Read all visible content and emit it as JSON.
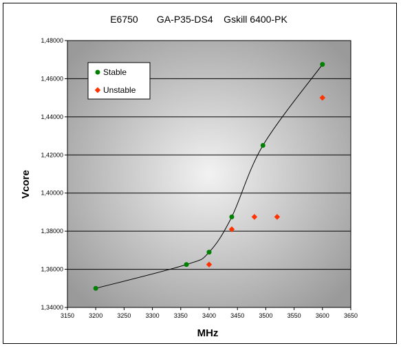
{
  "chart_data": {
    "type": "scatter",
    "title": "E6750       GA-P35-DS4    Gskill 6400-PK",
    "xlabel": "MHz",
    "ylabel": "Vcore",
    "xlim": [
      3150,
      3650
    ],
    "ylim": [
      1.34,
      1.48
    ],
    "x_ticks": [
      3150,
      3200,
      3250,
      3300,
      3350,
      3400,
      3450,
      3500,
      3550,
      3600,
      3650
    ],
    "y_ticks": [
      1.34,
      1.36,
      1.38,
      1.4,
      1.42,
      1.44,
      1.46,
      1.48
    ],
    "y_tick_labels": [
      "1,34000",
      "1,36000",
      "1,38000",
      "1,40000",
      "1,42000",
      "1,44000",
      "1,46000",
      "1,48000"
    ],
    "grid": "horizontal",
    "legend_position": "top-left",
    "series": [
      {
        "name": "Stable",
        "marker": "circle",
        "color": "#008000",
        "trendline": true,
        "points": [
          [
            3200,
            1.35
          ],
          [
            3360,
            1.3625
          ],
          [
            3400,
            1.369
          ],
          [
            3440,
            1.3875
          ],
          [
            3495,
            1.425
          ],
          [
            3600,
            1.4675
          ]
        ]
      },
      {
        "name": "Unstable",
        "marker": "diamond",
        "color": "#ff3300",
        "trendline": false,
        "points": [
          [
            3400,
            1.3625
          ],
          [
            3440,
            1.381
          ],
          [
            3480,
            1.3875
          ],
          [
            3520,
            1.3875
          ],
          [
            3600,
            1.45
          ]
        ]
      }
    ]
  }
}
